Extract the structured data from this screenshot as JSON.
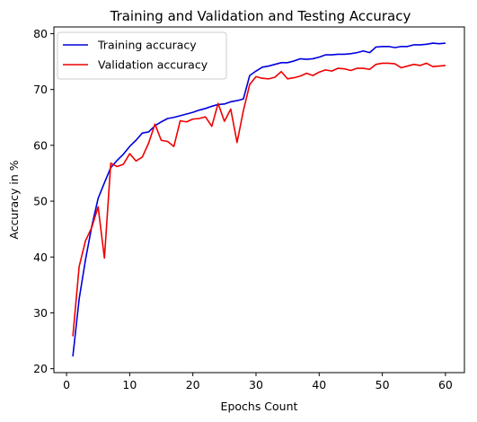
{
  "chart_data": {
    "type": "line",
    "title": "Training and Validation and Testing Accuracy",
    "xlabel": "Epochs Count",
    "ylabel": "Accuracy in %",
    "xlim": [
      -2,
      63
    ],
    "ylim": [
      19.3,
      81.2
    ],
    "xticks": [
      0,
      10,
      20,
      30,
      40,
      50,
      60
    ],
    "yticks": [
      20,
      30,
      40,
      50,
      60,
      70,
      80
    ],
    "grid": false,
    "legend_position": "upper-left",
    "x": [
      1,
      2,
      3,
      4,
      5,
      6,
      7,
      8,
      9,
      10,
      11,
      12,
      13,
      14,
      15,
      16,
      17,
      18,
      19,
      20,
      21,
      22,
      23,
      24,
      25,
      26,
      27,
      28,
      29,
      30,
      31,
      32,
      33,
      34,
      35,
      36,
      37,
      38,
      39,
      40,
      41,
      42,
      43,
      44,
      45,
      46,
      47,
      48,
      49,
      50,
      51,
      52,
      53,
      54,
      55,
      56,
      57,
      58,
      59,
      60
    ],
    "series": [
      {
        "name": "Training accuracy",
        "color": "#0000dd",
        "values": [
          22.2,
          32.5,
          39.5,
          45.5,
          50.5,
          53.3,
          56.0,
          57.3,
          58.4,
          59.8,
          60.9,
          62.2,
          62.4,
          63.5,
          64.2,
          64.8,
          65.0,
          65.3,
          65.6,
          65.9,
          66.3,
          66.6,
          67.0,
          67.3,
          67.4,
          67.8,
          68.0,
          68.3,
          72.5,
          73.3,
          74.0,
          74.2,
          74.5,
          74.8,
          74.8,
          75.1,
          75.5,
          75.4,
          75.5,
          75.8,
          76.2,
          76.2,
          76.3,
          76.3,
          76.4,
          76.6,
          76.9,
          76.6,
          77.6,
          77.7,
          77.7,
          77.5,
          77.7,
          77.7,
          78.0,
          78.0,
          78.1,
          78.3,
          78.2,
          78.3
        ]
      },
      {
        "name": "Validation accuracy",
        "color": "#ee0000",
        "values": [
          25.8,
          38.3,
          42.9,
          45.3,
          49.0,
          39.8,
          56.8,
          56.2,
          56.6,
          58.5,
          57.2,
          57.9,
          60.4,
          63.8,
          60.9,
          60.7,
          59.8,
          64.4,
          64.2,
          64.7,
          64.8,
          65.1,
          63.4,
          67.5,
          64.3,
          66.5,
          60.5,
          66.2,
          70.9,
          72.3,
          72.0,
          71.9,
          72.2,
          73.2,
          71.9,
          72.1,
          72.4,
          72.9,
          72.5,
          73.1,
          73.5,
          73.3,
          73.8,
          73.7,
          73.4,
          73.8,
          73.8,
          73.6,
          74.5,
          74.7,
          74.7,
          74.6,
          73.9,
          74.2,
          74.5,
          74.3,
          74.7,
          74.1,
          74.2,
          74.3
        ]
      }
    ]
  }
}
